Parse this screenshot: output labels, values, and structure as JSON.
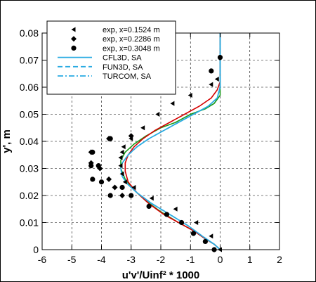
{
  "chart_data": {
    "type": "line",
    "xlabel": "u'v'/Uinf² * 1000",
    "ylabel": "y', m",
    "xlim": [
      -6,
      2
    ],
    "ylim": [
      0,
      0.08
    ],
    "x_ticks": [
      -6,
      -5,
      -4,
      -3,
      -2,
      -1,
      0,
      1,
      2
    ],
    "y_ticks": [
      0,
      0.01,
      0.02,
      0.03,
      0.04,
      0.05,
      0.06,
      0.07,
      0.08
    ],
    "x_tick_labels": [
      "-6",
      "-5",
      "-4",
      "-3",
      "-2",
      "-1",
      "0",
      "1",
      "2"
    ],
    "y_tick_labels": [
      "0",
      "0.01",
      "0.02",
      "0.03",
      "0.04",
      "0.05",
      "0.06",
      "0.07",
      "0.08"
    ],
    "grid": "dashed",
    "legend_position": "top-left",
    "colors": {
      "red": "#d40000",
      "green": "#1a9a1a",
      "blue": "#29abe2",
      "black": "#000000"
    },
    "experimental": [
      {
        "name": "exp, x=0.1524 m",
        "marker": "triangle-left",
        "x": [
          0,
          -0.3,
          -0.8,
          -1.5,
          -2.3,
          -2.9,
          -3.2,
          -3.3,
          -3.35,
          -3.35,
          -3.3,
          -3.25,
          -3.0,
          -2.6,
          -2.1,
          -1.6,
          -1.0,
          -0.3,
          -0.1
        ],
        "y": [
          0.0,
          0.005,
          0.01,
          0.015,
          0.019,
          0.023,
          0.025,
          0.028,
          0.031,
          0.034,
          0.036,
          0.038,
          0.041,
          0.045,
          0.05,
          0.054,
          0.057,
          0.061,
          0.063
        ]
      },
      {
        "name": "exp, x=0.2286 m",
        "marker": "diamond",
        "x": [
          -3.3,
          -3.55,
          -3.75,
          -4.05,
          -4.35,
          -4.35,
          -3.75,
          -3.0
        ],
        "y": [
          0.02,
          0.023,
          0.026,
          0.03,
          0.032,
          0.036,
          0.041,
          0.042
        ]
      },
      {
        "name": "exp, x=0.3048 m",
        "marker": "circle",
        "x": [
          -0.2,
          -0.5,
          -0.9,
          -1.3,
          -1.8,
          -2.4,
          -3.0,
          -3.3,
          -3.7,
          -4.0,
          -4.3,
          -4.35,
          -4.1,
          -4.3,
          -3.7,
          -0.3,
          0.0
        ],
        "y": [
          0.0,
          0.003,
          0.006,
          0.01,
          0.013,
          0.016,
          0.02,
          0.023,
          0.02,
          0.025,
          0.026,
          0.031,
          0.031,
          0.036,
          0.041,
          0.066,
          0.071
        ]
      }
    ],
    "series": [
      {
        "name": "CFL3D, SA",
        "style": "solid",
        "color": "blue",
        "x": [
          0,
          -0.2,
          -0.6,
          -1.1,
          -1.7,
          -2.3,
          -2.8,
          -3.1,
          -3.3,
          -3.35,
          -3.3,
          -3.1,
          -2.8,
          -2.4,
          -1.9,
          -1.4,
          -0.9,
          -0.4,
          -0.1,
          0,
          0
        ],
        "y": [
          0.0,
          0.002,
          0.005,
          0.009,
          0.013,
          0.017,
          0.021,
          0.024,
          0.027,
          0.03,
          0.032,
          0.035,
          0.038,
          0.041,
          0.044,
          0.047,
          0.05,
          0.053,
          0.056,
          0.06,
          0.08
        ]
      },
      {
        "name": "FUN3D, SA",
        "style": "dashed",
        "color": "blue",
        "x": [
          0,
          -0.2,
          -0.6,
          -1.1,
          -1.7,
          -2.3,
          -2.8,
          -3.1,
          -3.3,
          -3.35,
          -3.3,
          -3.1,
          -2.8,
          -2.4,
          -1.9,
          -1.4,
          -0.9,
          -0.4,
          -0.1,
          0,
          0
        ],
        "y": [
          0.0,
          0.002,
          0.005,
          0.009,
          0.013,
          0.017,
          0.021,
          0.024,
          0.027,
          0.03,
          0.032,
          0.035,
          0.038,
          0.041,
          0.044,
          0.047,
          0.05,
          0.053,
          0.056,
          0.06,
          0.08
        ]
      },
      {
        "name": "TURCOM, SA",
        "style": "dashdot",
        "color": "blue",
        "x": [
          0,
          -0.2,
          -0.6,
          -1.1,
          -1.7,
          -2.3,
          -2.8,
          -3.1,
          -3.3,
          -3.35,
          -3.3,
          -3.1,
          -2.8,
          -2.4,
          -1.9,
          -1.4,
          -0.9,
          -0.4,
          -0.1,
          0,
          0
        ],
        "y": [
          0.0,
          0.002,
          0.005,
          0.009,
          0.013,
          0.017,
          0.021,
          0.024,
          0.027,
          0.03,
          0.032,
          0.035,
          0.038,
          0.041,
          0.044,
          0.047,
          0.05,
          0.053,
          0.056,
          0.06,
          0.08
        ]
      }
    ],
    "unlabeled_curves": [
      {
        "color": "green",
        "x": [
          0,
          -0.2,
          -0.5,
          -0.9,
          -1.4,
          -2.0,
          -2.5,
          -2.9,
          -3.2,
          -3.35,
          -3.35,
          -3.2,
          -2.9,
          -2.5,
          -2.0,
          -1.5,
          -1.0,
          -0.5,
          -0.2,
          0,
          0
        ],
        "y": [
          0.0,
          0.002,
          0.004,
          0.007,
          0.01,
          0.014,
          0.018,
          0.022,
          0.026,
          0.03,
          0.033,
          0.036,
          0.039,
          0.042,
          0.045,
          0.047,
          0.05,
          0.052,
          0.054,
          0.057,
          0.08
        ]
      },
      {
        "color": "red",
        "x": [
          0,
          -0.2,
          -0.5,
          -0.9,
          -1.4,
          -1.9,
          -2.4,
          -2.8,
          -3.1,
          -3.2,
          -3.2,
          -3.1,
          -2.9,
          -2.6,
          -2.2,
          -1.7,
          -1.2,
          -0.7,
          -0.3,
          -0.1,
          0,
          0
        ],
        "y": [
          0.0,
          0.002,
          0.004,
          0.007,
          0.01,
          0.013,
          0.017,
          0.021,
          0.025,
          0.029,
          0.032,
          0.035,
          0.038,
          0.041,
          0.044,
          0.047,
          0.05,
          0.053,
          0.056,
          0.059,
          0.062,
          0.08
        ]
      }
    ]
  }
}
